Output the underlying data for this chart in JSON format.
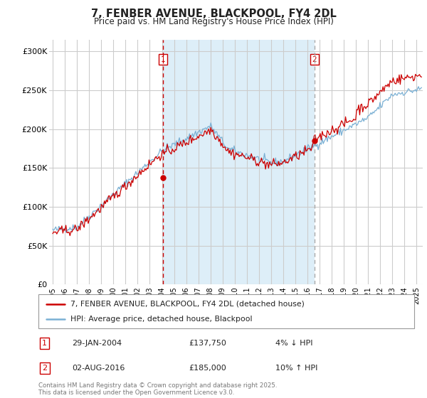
{
  "title": "7, FENBER AVENUE, BLACKPOOL, FY4 2DL",
  "subtitle": "Price paid vs. HM Land Registry's House Price Index (HPI)",
  "ylabel_ticks": [
    "£0",
    "£50K",
    "£100K",
    "£150K",
    "£200K",
    "£250K",
    "£300K"
  ],
  "ytick_values": [
    0,
    50000,
    100000,
    150000,
    200000,
    250000,
    300000
  ],
  "ylim": [
    0,
    315000
  ],
  "xlim_start": 1994.7,
  "xlim_end": 2025.5,
  "bg_color_outside": "#f0f0f0",
  "bg_color_between": "#ddeeff",
  "grid_color": "#cccccc",
  "line1_color": "#cc0000",
  "line2_color": "#7ab0d4",
  "vline1_color": "#cc0000",
  "vline2_color": "#aaaaaa",
  "marker1_x": 2004.08,
  "marker1_y": 137750,
  "marker2_x": 2016.58,
  "marker2_y": 185000,
  "legend_line1": "7, FENBER AVENUE, BLACKPOOL, FY4 2DL (detached house)",
  "legend_line2": "HPI: Average price, detached house, Blackpool",
  "footer": "Contains HM Land Registry data © Crown copyright and database right 2025.\nThis data is licensed under the Open Government Licence v3.0.",
  "xticks": [
    1995,
    1996,
    1997,
    1998,
    1999,
    2000,
    2001,
    2002,
    2003,
    2004,
    2005,
    2006,
    2007,
    2008,
    2009,
    2010,
    2011,
    2012,
    2013,
    2014,
    2015,
    2016,
    2017,
    2018,
    2019,
    2020,
    2021,
    2022,
    2023,
    2024,
    2025
  ]
}
